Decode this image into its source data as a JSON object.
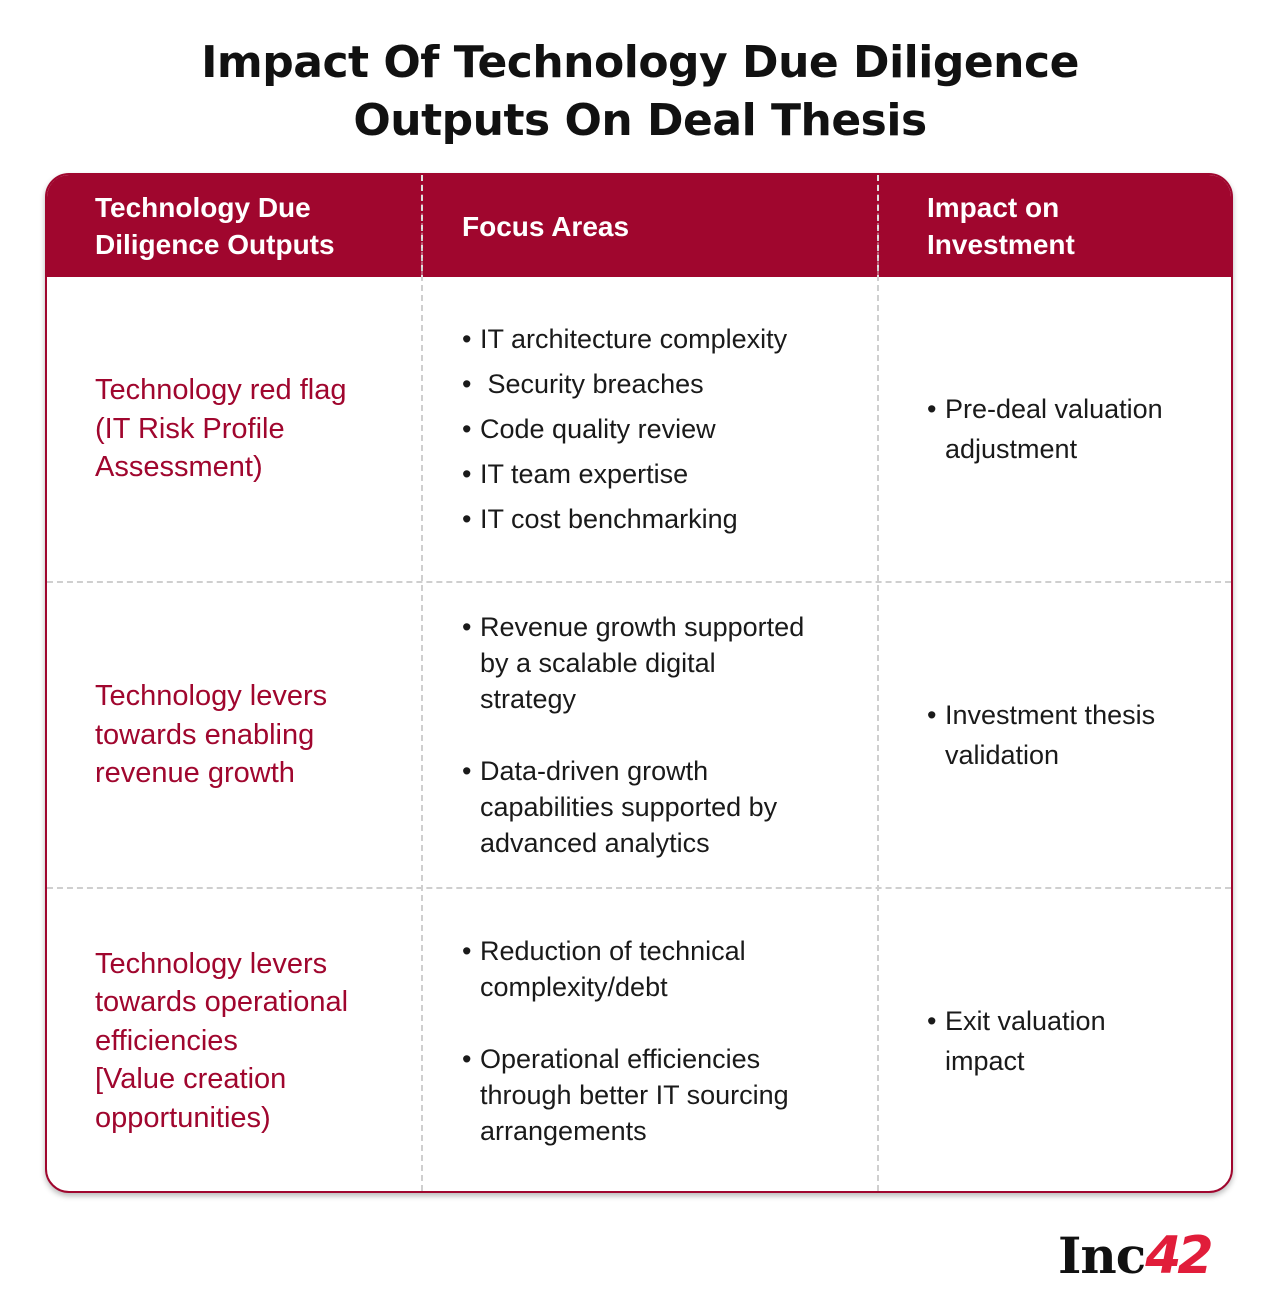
{
  "title": {
    "line1": "Impact Of Technology Due Diligence",
    "line2": "Outputs On Deal Thesis"
  },
  "table": {
    "headers": [
      {
        "line1": "Technology Due",
        "line2": "Diligence Outputs"
      },
      {
        "line1": "Focus Areas"
      },
      {
        "line1": "Impact on",
        "line2": "Investment"
      }
    ],
    "rows": [
      {
        "output": [
          "Technology red flag",
          "(IT Risk Profile",
          "Assessment)"
        ],
        "focus": [
          [
            "IT architecture complexity"
          ],
          [
            " Security breaches"
          ],
          [
            "Code quality review"
          ],
          [
            "IT team expertise"
          ],
          [
            "IT cost benchmarking"
          ]
        ],
        "impact": [
          "Pre-deal valuation",
          "adjustment"
        ]
      },
      {
        "output": [
          "Technology levers",
          "towards enabling",
          "revenue growth"
        ],
        "focus": [
          [
            "Revenue growth supported",
            "by a scalable digital",
            "strategy"
          ],
          [
            "Data-driven growth",
            "capabilities supported by",
            "advanced analytics"
          ]
        ],
        "impact": [
          "Investment thesis",
          "validation"
        ]
      },
      {
        "output": [
          "Technology levers",
          "towards operational",
          "efficiencies",
          "[Value creation",
          "opportunities)"
        ],
        "focus": [
          [
            "Reduction of technical",
            "complexity/debt"
          ],
          [
            "Operational efficiencies",
            "through better IT sourcing",
            "arrangements"
          ]
        ],
        "impact": [
          "Exit valuation",
          "impact"
        ]
      }
    ]
  },
  "logo": {
    "text": "Inc",
    "number": "42"
  },
  "colors": {
    "accent": "#a0062e",
    "logo_red": "#e11d3a"
  }
}
